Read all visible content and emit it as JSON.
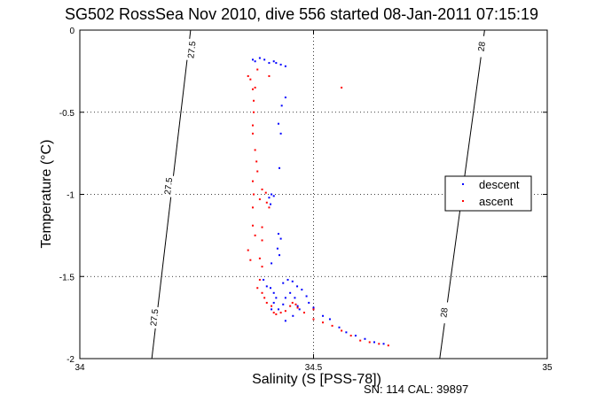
{
  "chart_data": {
    "type": "scatter",
    "title": "SG502 RossSea Nov 2010, dive 556 started 08-Jan-2011 07:15:19",
    "xlabel": "Salinity (S [PSS-78])",
    "ylabel": "Temperature (°C)",
    "xlim": [
      34,
      35
    ],
    "ylim": [
      -2,
      0
    ],
    "xticks": [
      "34",
      "34.5",
      "35"
    ],
    "yticks": [
      "0",
      "-0.5",
      "-1",
      "-1.5",
      "-2"
    ],
    "grid": "dotted at major ticks",
    "legend_position": "right",
    "footer": "SN: 114  CAL: 39897",
    "isopycnals": [
      {
        "label": "27.5",
        "points": [
          [
            34.154,
            -2.0
          ],
          [
            34.237,
            0.0
          ]
        ]
      },
      {
        "label": "28",
        "points": [
          [
            34.77,
            -2.0
          ],
          [
            34.866,
            0.0
          ]
        ]
      }
    ],
    "isopycnal_labels": [
      {
        "text": "27.5",
        "x": 34.24,
        "y": -0.12
      },
      {
        "text": "27.5",
        "x": 34.19,
        "y": -0.95
      },
      {
        "text": "27.5",
        "x": 34.16,
        "y": -1.75
      },
      {
        "text": "28",
        "x": 34.86,
        "y": -0.1
      },
      {
        "text": "28",
        "x": 34.78,
        "y": -1.72
      }
    ],
    "series": [
      {
        "name": "descent",
        "color": "#0000ff",
        "points": [
          [
            34.37,
            -0.18
          ],
          [
            34.375,
            -0.19
          ],
          [
            34.385,
            -0.17
          ],
          [
            34.395,
            -0.18
          ],
          [
            34.405,
            -0.2
          ],
          [
            34.415,
            -0.19
          ],
          [
            34.42,
            -0.2
          ],
          [
            34.43,
            -0.21
          ],
          [
            34.44,
            -0.22
          ],
          [
            34.44,
            -0.41
          ],
          [
            34.432,
            -0.46
          ],
          [
            34.425,
            -0.57
          ],
          [
            34.43,
            -0.63
          ],
          [
            34.427,
            -0.84
          ],
          [
            34.41,
            -1.0
          ],
          [
            34.415,
            -1.01
          ],
          [
            34.405,
            -1.02
          ],
          [
            34.408,
            -1.06
          ],
          [
            34.425,
            -1.24
          ],
          [
            34.43,
            -1.27
          ],
          [
            34.423,
            -1.33
          ],
          [
            34.427,
            -1.37
          ],
          [
            34.41,
            -1.42
          ],
          [
            34.393,
            -1.52
          ],
          [
            34.4,
            -1.56
          ],
          [
            34.408,
            -1.57
          ],
          [
            34.415,
            -1.6
          ],
          [
            34.42,
            -1.63
          ],
          [
            34.415,
            -1.66
          ],
          [
            34.41,
            -1.7
          ],
          [
            34.425,
            -1.7
          ],
          [
            34.435,
            -1.67
          ],
          [
            34.44,
            -1.63
          ],
          [
            34.45,
            -1.6
          ],
          [
            34.46,
            -1.63
          ],
          [
            34.466,
            -1.68
          ],
          [
            34.47,
            -1.7
          ],
          [
            34.456,
            -1.74
          ],
          [
            34.44,
            -1.77
          ],
          [
            34.435,
            -1.54
          ],
          [
            34.445,
            -1.52
          ],
          [
            34.455,
            -1.53
          ],
          [
            34.465,
            -1.56
          ],
          [
            34.475,
            -1.58
          ],
          [
            34.485,
            -1.62
          ],
          [
            34.49,
            -1.66
          ],
          [
            34.5,
            -1.69
          ],
          [
            34.52,
            -1.74
          ],
          [
            34.535,
            -1.76
          ],
          [
            34.555,
            -1.81
          ],
          [
            34.57,
            -1.84
          ],
          [
            34.59,
            -1.86
          ],
          [
            34.61,
            -1.88
          ],
          [
            34.63,
            -1.9
          ],
          [
            34.65,
            -1.91
          ]
        ]
      },
      {
        "name": "ascent",
        "color": "#ff0000",
        "points": [
          [
            34.36,
            -0.28
          ],
          [
            34.365,
            -0.3
          ],
          [
            34.37,
            -0.36
          ],
          [
            34.372,
            -0.43
          ],
          [
            34.372,
            -0.5
          ],
          [
            34.37,
            -0.58
          ],
          [
            34.37,
            -0.63
          ],
          [
            34.375,
            -0.73
          ],
          [
            34.378,
            -0.8
          ],
          [
            34.38,
            -0.86
          ],
          [
            34.37,
            -0.92
          ],
          [
            34.372,
            -1.0
          ],
          [
            34.37,
            -1.08
          ],
          [
            34.39,
            -0.97
          ],
          [
            34.398,
            -0.99
          ],
          [
            34.385,
            -1.03
          ],
          [
            34.37,
            -1.19
          ],
          [
            34.375,
            -1.25
          ],
          [
            34.36,
            -1.34
          ],
          [
            34.365,
            -1.4
          ],
          [
            34.39,
            -1.2
          ],
          [
            34.39,
            -1.28
          ],
          [
            34.385,
            -1.39
          ],
          [
            34.39,
            -1.44
          ],
          [
            34.38,
            -1.57
          ],
          [
            34.385,
            -1.52
          ],
          [
            34.39,
            -1.6
          ],
          [
            34.395,
            -1.63
          ],
          [
            34.4,
            -1.66
          ],
          [
            34.41,
            -1.68
          ],
          [
            34.415,
            -1.72
          ],
          [
            34.42,
            -1.73
          ],
          [
            34.43,
            -1.72
          ],
          [
            34.44,
            -1.71
          ],
          [
            34.45,
            -1.68
          ],
          [
            34.455,
            -1.66
          ],
          [
            34.462,
            -1.67
          ],
          [
            34.466,
            -1.69
          ],
          [
            34.48,
            -1.72
          ],
          [
            34.5,
            -1.76
          ],
          [
            34.52,
            -1.78
          ],
          [
            34.54,
            -1.8
          ],
          [
            34.56,
            -1.83
          ],
          [
            34.58,
            -1.86
          ],
          [
            34.6,
            -1.89
          ],
          [
            34.62,
            -1.9
          ],
          [
            34.64,
            -1.91
          ],
          [
            34.66,
            -1.92
          ],
          [
            34.56,
            -0.35
          ],
          [
            34.38,
            -0.24
          ],
          [
            34.375,
            -0.35
          ],
          [
            34.405,
            -0.28
          ],
          [
            34.4,
            -1.05
          ],
          [
            34.405,
            -1.08
          ],
          [
            34.5,
            -1.7
          ]
        ]
      }
    ]
  }
}
